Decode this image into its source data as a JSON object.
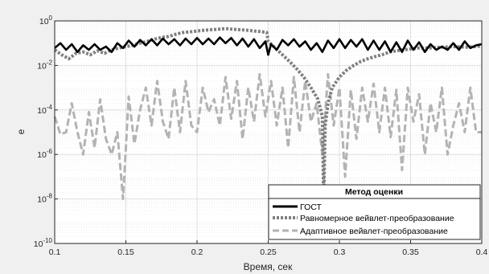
{
  "chart_data": {
    "type": "line",
    "xlabel": "Время, сек",
    "ylabel": "e",
    "xlim": [
      0.1,
      0.4
    ],
    "ylim": [
      1e-10,
      1
    ],
    "yscale": "log",
    "grid": true,
    "legend_placement": "bottom-right",
    "x_ticks": [
      "0.1",
      "0.15",
      "0.2",
      "0.25",
      "0.3",
      "0.35",
      "0.4"
    ],
    "y_ticks": [
      {
        "base": "10",
        "exp": "0"
      },
      {
        "base": "10",
        "exp": "-2"
      },
      {
        "base": "10",
        "exp": "-4"
      },
      {
        "base": "10",
        "exp": "-6"
      },
      {
        "base": "10",
        "exp": "-8"
      },
      {
        "base": "10",
        "exp": "-10"
      }
    ],
    "legend": {
      "title": "Метод оценки",
      "entries": [
        "ГОСТ",
        "Равномерное вейвлет-преобразование",
        "Адаптивное вейвлет-преобразование"
      ]
    },
    "colors": {
      "gost": "#000000",
      "uniform": "#7f7f7f",
      "adaptive": "#b3b3b3",
      "background": "#f0f0f0",
      "plot_area": "#ffffff"
    },
    "series": [
      {
        "name": "ГОСТ",
        "style": "solid",
        "x": [
          0.1,
          0.104,
          0.108,
          0.112,
          0.116,
          0.12,
          0.124,
          0.128,
          0.132,
          0.136,
          0.14,
          0.144,
          0.148,
          0.152,
          0.156,
          0.16,
          0.164,
          0.168,
          0.172,
          0.176,
          0.18,
          0.184,
          0.188,
          0.192,
          0.196,
          0.2,
          0.204,
          0.208,
          0.212,
          0.216,
          0.22,
          0.224,
          0.228,
          0.232,
          0.236,
          0.24,
          0.244,
          0.248,
          0.25,
          0.252,
          0.256,
          0.26,
          0.264,
          0.268,
          0.272,
          0.276,
          0.28,
          0.284,
          0.288,
          0.292,
          0.296,
          0.3,
          0.304,
          0.308,
          0.312,
          0.316,
          0.32,
          0.324,
          0.328,
          0.332,
          0.336,
          0.34,
          0.344,
          0.348,
          0.352,
          0.356,
          0.36,
          0.364,
          0.368,
          0.372,
          0.376,
          0.38,
          0.384,
          0.388,
          0.392,
          0.396,
          0.4
        ],
        "y": [
          0.06,
          0.1,
          0.05,
          0.09,
          0.04,
          0.08,
          0.05,
          0.09,
          0.05,
          0.07,
          0.04,
          0.1,
          0.06,
          0.13,
          0.07,
          0.14,
          0.08,
          0.15,
          0.08,
          0.16,
          0.09,
          0.15,
          0.08,
          0.16,
          0.09,
          0.17,
          0.09,
          0.16,
          0.09,
          0.18,
          0.1,
          0.17,
          0.08,
          0.16,
          0.07,
          0.15,
          0.06,
          0.12,
          0.03,
          0.09,
          0.05,
          0.14,
          0.08,
          0.15,
          0.07,
          0.12,
          0.05,
          0.1,
          0.04,
          0.13,
          0.06,
          0.15,
          0.06,
          0.14,
          0.07,
          0.15,
          0.05,
          0.13,
          0.05,
          0.12,
          0.04,
          0.11,
          0.04,
          0.13,
          0.05,
          0.11,
          0.04,
          0.09,
          0.05,
          0.07,
          0.05,
          0.1,
          0.05,
          0.12,
          0.06,
          0.08,
          0.09
        ]
      },
      {
        "name": "Равномерное вейвлет-преобразование",
        "style": "dotted",
        "x": [
          0.1,
          0.105,
          0.11,
          0.115,
          0.12,
          0.125,
          0.13,
          0.135,
          0.14,
          0.145,
          0.15,
          0.155,
          0.16,
          0.165,
          0.17,
          0.175,
          0.18,
          0.185,
          0.19,
          0.195,
          0.2,
          0.205,
          0.21,
          0.215,
          0.22,
          0.225,
          0.23,
          0.235,
          0.24,
          0.245,
          0.249,
          0.25,
          0.255,
          0.26,
          0.265,
          0.27,
          0.275,
          0.28,
          0.285,
          0.288,
          0.289,
          0.29,
          0.292,
          0.295,
          0.3,
          0.305,
          0.31,
          0.315,
          0.32,
          0.325,
          0.33,
          0.335,
          0.34,
          0.345,
          0.35,
          0.355,
          0.36,
          0.365,
          0.37,
          0.375,
          0.38,
          0.385,
          0.39,
          0.395,
          0.4
        ],
        "y": [
          0.05,
          0.03,
          0.02,
          0.035,
          0.04,
          0.03,
          0.045,
          0.035,
          0.05,
          0.06,
          0.07,
          0.08,
          0.1,
          0.12,
          0.15,
          0.18,
          0.2,
          0.25,
          0.3,
          0.32,
          0.35,
          0.38,
          0.4,
          0.42,
          0.45,
          0.42,
          0.4,
          0.38,
          0.35,
          0.33,
          0.3,
          0.12,
          0.06,
          0.03,
          0.015,
          0.007,
          0.003,
          0.001,
          0.0003,
          5e-05,
          5e-09,
          2e-05,
          0.0002,
          0.001,
          0.003,
          0.006,
          0.01,
          0.015,
          0.02,
          0.025,
          0.03,
          0.04,
          0.045,
          0.05,
          0.055,
          0.06,
          0.06,
          0.062,
          0.065,
          0.067,
          0.07,
          0.068,
          0.066,
          0.07,
          0.075
        ]
      },
      {
        "name": "Адаптивное вейвлет-преобразование",
        "style": "dashed",
        "x": [
          0.1,
          0.104,
          0.108,
          0.112,
          0.116,
          0.12,
          0.124,
          0.128,
          0.132,
          0.136,
          0.14,
          0.144,
          0.148,
          0.152,
          0.156,
          0.16,
          0.164,
          0.168,
          0.172,
          0.176,
          0.18,
          0.184,
          0.188,
          0.192,
          0.196,
          0.2,
          0.204,
          0.208,
          0.212,
          0.216,
          0.22,
          0.224,
          0.228,
          0.232,
          0.236,
          0.24,
          0.244,
          0.248,
          0.252,
          0.256,
          0.26,
          0.264,
          0.268,
          0.272,
          0.276,
          0.28,
          0.284,
          0.288,
          0.292,
          0.296,
          0.3,
          0.304,
          0.308,
          0.312,
          0.316,
          0.32,
          0.324,
          0.328,
          0.332,
          0.336,
          0.34,
          0.344,
          0.348,
          0.352,
          0.356,
          0.36,
          0.364,
          0.368,
          0.372,
          0.376,
          0.38,
          0.384,
          0.388,
          0.392,
          0.396,
          0.4
        ],
        "y": [
          5e-05,
          8e-06,
          1e-05,
          0.0002,
          1e-05,
          1e-06,
          8e-05,
          2e-06,
          0.0003,
          5e-06,
          1e-06,
          1e-05,
          1e-08,
          0.0004,
          3e-06,
          0.0001,
          0.001,
          2e-05,
          0.002,
          3e-05,
          5e-06,
          0.001,
          1e-05,
          0.002,
          2e-05,
          1e-05,
          0.001,
          8e-05,
          0.0003,
          2e-05,
          0.003,
          4e-05,
          0.002,
          5e-06,
          0.001,
          3e-05,
          0.004,
          5e-05,
          0.002,
          2e-05,
          0.001,
          2e-06,
          0.003,
          1e-05,
          0.002,
          3e-05,
          0.0002,
          1e-06,
          0.004,
          2e-05,
          0.001,
          1e-07,
          0.0008,
          5e-06,
          0.001,
          3e-05,
          0.0015,
          1e-05,
          0.001,
          6e-06,
          0.0008,
          2e-07,
          0.001,
          3e-05,
          0.0005,
          1e-06,
          0.0002,
          1e-05,
          0.001,
          1e-06,
          2e-05,
          0.0002,
          1e-05,
          0.001,
          1e-05,
          1e-05
        ]
      }
    ]
  }
}
